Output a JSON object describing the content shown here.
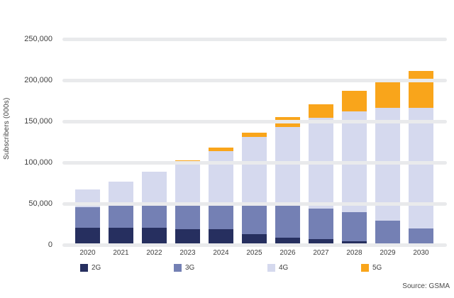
{
  "colors": {
    "background": "#ffffff",
    "grid": "#e9eaec",
    "axis_text": "#3f3f3f"
  },
  "y_axis_title": "Subscribers (000s)",
  "footnote": "Source: GSMA",
  "chart_data": {
    "type": "bar",
    "stacked": true,
    "title": "",
    "xlabel": "",
    "ylabel": "Subscribers (000s)",
    "categories": [
      "2020",
      "2021",
      "2022",
      "2023",
      "2024",
      "2025",
      "2026",
      "2027",
      "2028",
      "2029",
      "2030"
    ],
    "series": [
      {
        "name": "2G",
        "color": "#262f5f",
        "values": [
          21000,
          21000,
          21000,
          19000,
          19000,
          13000,
          9000,
          7000,
          4000,
          2000,
          1000
        ]
      },
      {
        "name": "3G",
        "color": "#7480b4",
        "values": [
          25000,
          27000,
          30000,
          32000,
          31000,
          38000,
          40000,
          37000,
          36000,
          27000,
          19000
        ]
      },
      {
        "name": "4G",
        "color": "#d5d9ee",
        "values": [
          21000,
          29000,
          38000,
          48000,
          64000,
          80000,
          94000,
          110000,
          122000,
          137000,
          146000
        ]
      },
      {
        "name": "5G",
        "color": "#f9a51b",
        "values": [
          0,
          0,
          0,
          4000,
          4000,
          5000,
          12000,
          17000,
          25000,
          32000,
          45000
        ]
      }
    ],
    "ylim": [
      0,
      250000
    ],
    "yticks": [
      0,
      50000,
      100000,
      150000,
      200000,
      250000
    ],
    "ytick_labels": [
      "0",
      "50,000",
      "100,000",
      "150,000",
      "200,000",
      "250,000"
    ],
    "grid": "horizontal gridlines drawn over bars",
    "legend_position": "bottom"
  }
}
